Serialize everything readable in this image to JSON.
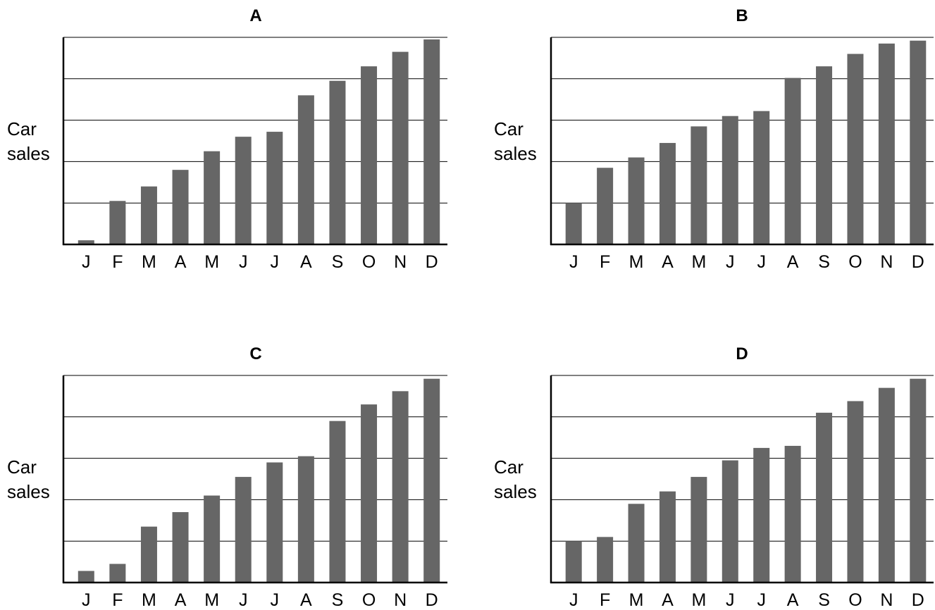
{
  "chart_data": [
    {
      "type": "bar",
      "title": "A",
      "ylabel": "Car sales",
      "categories": [
        "J",
        "F",
        "M",
        "A",
        "M",
        "J",
        "J",
        "A",
        "S",
        "O",
        "N",
        "D"
      ],
      "values": [
        0.1,
        1.05,
        1.4,
        1.8,
        2.25,
        2.6,
        2.72,
        3.6,
        3.95,
        4.3,
        4.65,
        4.95
      ],
      "ylim": [
        0,
        5
      ],
      "grid": true,
      "color": "#666666"
    },
    {
      "type": "bar",
      "title": "B",
      "ylabel": "Car sales",
      "categories": [
        "J",
        "F",
        "M",
        "A",
        "M",
        "J",
        "J",
        "A",
        "S",
        "O",
        "N",
        "D"
      ],
      "values": [
        1.0,
        1.85,
        2.1,
        2.45,
        2.85,
        3.1,
        3.22,
        4.02,
        4.3,
        4.6,
        4.85,
        4.92
      ],
      "ylim": [
        0,
        5
      ],
      "grid": true,
      "color": "#666666"
    },
    {
      "type": "bar",
      "title": "C",
      "ylabel": "Car sales",
      "categories": [
        "J",
        "F",
        "M",
        "A",
        "M",
        "J",
        "J",
        "A",
        "S",
        "O",
        "N",
        "D"
      ],
      "values": [
        0.28,
        0.45,
        1.35,
        1.7,
        2.1,
        2.55,
        2.9,
        3.05,
        3.9,
        4.3,
        4.62,
        4.92
      ],
      "ylim": [
        0,
        5
      ],
      "grid": true,
      "color": "#666666"
    },
    {
      "type": "bar",
      "title": "D",
      "ylabel": "Car sales",
      "categories": [
        "J",
        "F",
        "M",
        "A",
        "M",
        "J",
        "J",
        "A",
        "S",
        "O",
        "N",
        "D"
      ],
      "values": [
        1.0,
        1.1,
        1.9,
        2.2,
        2.55,
        2.95,
        3.25,
        3.3,
        4.1,
        4.38,
        4.7,
        4.92
      ],
      "ylim": [
        0,
        5
      ],
      "grid": true,
      "color": "#666666"
    }
  ]
}
